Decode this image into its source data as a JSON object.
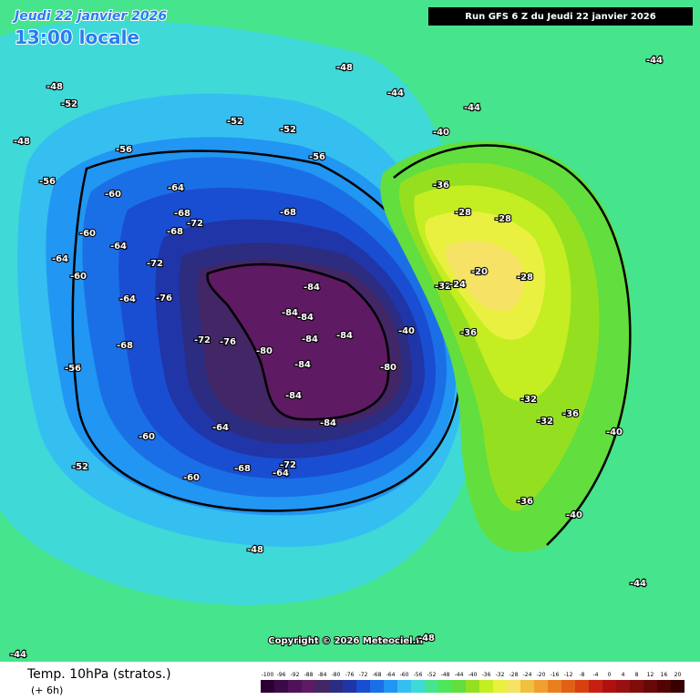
{
  "header": {
    "date": "Jeudi 22 janvier 2026",
    "time": "13:00 locale",
    "run": "Run GFS 6 Z du Jeudi 22 janvier 2026"
  },
  "copyright": "Copyright © 2026 Meteociel.fr",
  "footer": {
    "title": "Temp. 10hPa (stratos.)",
    "lead": "(+ 6h)"
  },
  "legend": {
    "values": [
      -100,
      -96,
      -92,
      -88,
      -84,
      -80,
      -76,
      -72,
      -68,
      -64,
      -60,
      -56,
      -52,
      -48,
      -44,
      -40,
      -36,
      -32,
      -28,
      -24,
      -20,
      -16,
      -12,
      -8,
      -4,
      0,
      4,
      8,
      12,
      16,
      20
    ]
  },
  "map_labels": [
    "-84",
    "-84",
    "-84",
    "-84",
    "-84",
    "-84",
    "-84",
    "-84",
    "-80",
    "-80",
    "-76",
    "-76",
    "-72",
    "-72",
    "-72",
    "-72",
    "-68",
    "-68",
    "-68",
    "-68",
    "-68",
    "-64",
    "-64",
    "-64",
    "-64",
    "-64",
    "-64",
    "-60",
    "-60",
    "-60",
    "-60",
    "-60",
    "-56",
    "-56",
    "-56",
    "-56",
    "-52",
    "-52",
    "-52",
    "-52",
    "-48",
    "-48",
    "-48",
    "-48",
    "-48",
    "-44",
    "-44",
    "-44",
    "-44",
    "-44",
    "-40",
    "-40",
    "-40",
    "-40",
    "-36",
    "-36",
    "-36",
    "-36",
    "-32",
    "-32",
    "-32",
    "-28",
    "-28",
    "-28",
    "-24",
    "-20"
  ]
}
